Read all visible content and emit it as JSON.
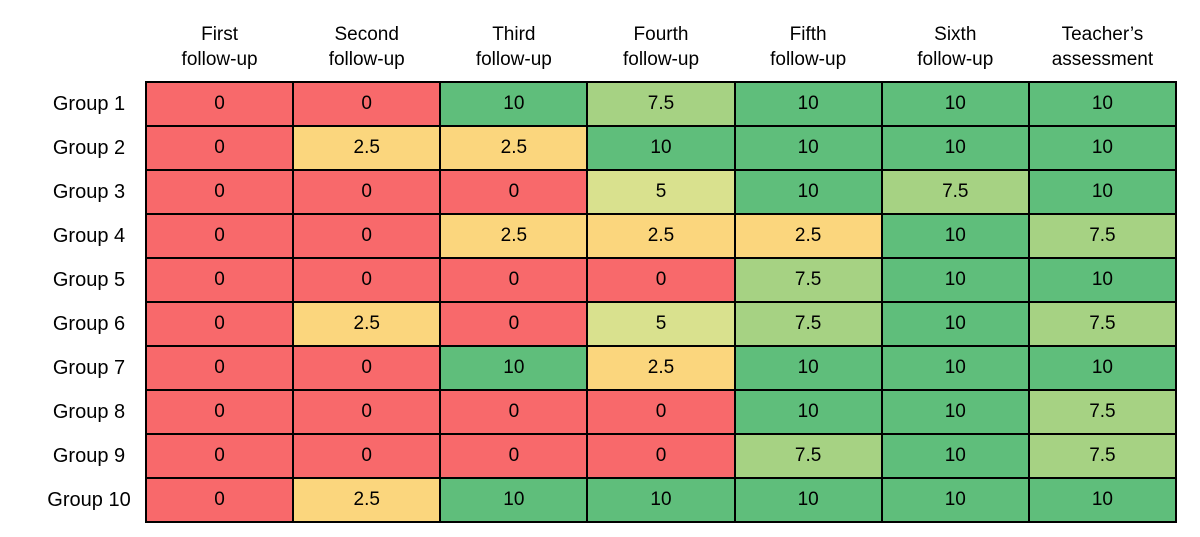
{
  "figure": {
    "kind": "score-heatmap-table",
    "background_color": "#ffffff",
    "grid_border_color": "#000000",
    "text_color": "#000000"
  },
  "chart_data": {
    "type": "heatmap",
    "title": "",
    "columns": [
      "First\nfollow-up",
      "Second\nfollow-up",
      "Third\nfollow-up",
      "Fourth\nfollow-up",
      "Fifth\nfollow-up",
      "Sixth\nfollow-up",
      "Teacher’s\nassessment"
    ],
    "rows": [
      "Group 1",
      "Group 2",
      "Group 3",
      "Group 4",
      "Group 5",
      "Group 6",
      "Group 7",
      "Group 8",
      "Group 9",
      "Group 10"
    ],
    "values": [
      [
        0,
        0,
        10,
        7.5,
        10,
        10,
        10
      ],
      [
        0,
        2.5,
        2.5,
        10,
        10,
        10,
        10
      ],
      [
        0,
        0,
        0,
        5,
        10,
        7.5,
        10
      ],
      [
        0,
        0,
        2.5,
        2.5,
        2.5,
        10,
        7.5
      ],
      [
        0,
        0,
        0,
        0,
        7.5,
        10,
        10
      ],
      [
        0,
        2.5,
        0,
        5,
        7.5,
        10,
        7.5
      ],
      [
        0,
        0,
        10,
        2.5,
        10,
        10,
        10
      ],
      [
        0,
        0,
        0,
        0,
        10,
        10,
        7.5
      ],
      [
        0,
        0,
        0,
        0,
        7.5,
        10,
        7.5
      ],
      [
        0,
        2.5,
        10,
        10,
        10,
        10,
        10
      ]
    ],
    "value_scale": {
      "min": 0,
      "max": 10
    },
    "value_colors": {
      "0": "#F8696B",
      "2.5": "#FBD67D",
      "5": "#D9E18E",
      "7.5": "#A6D283",
      "10": "#5FBE7B"
    },
    "legend_position": "none",
    "grid": "on"
  }
}
